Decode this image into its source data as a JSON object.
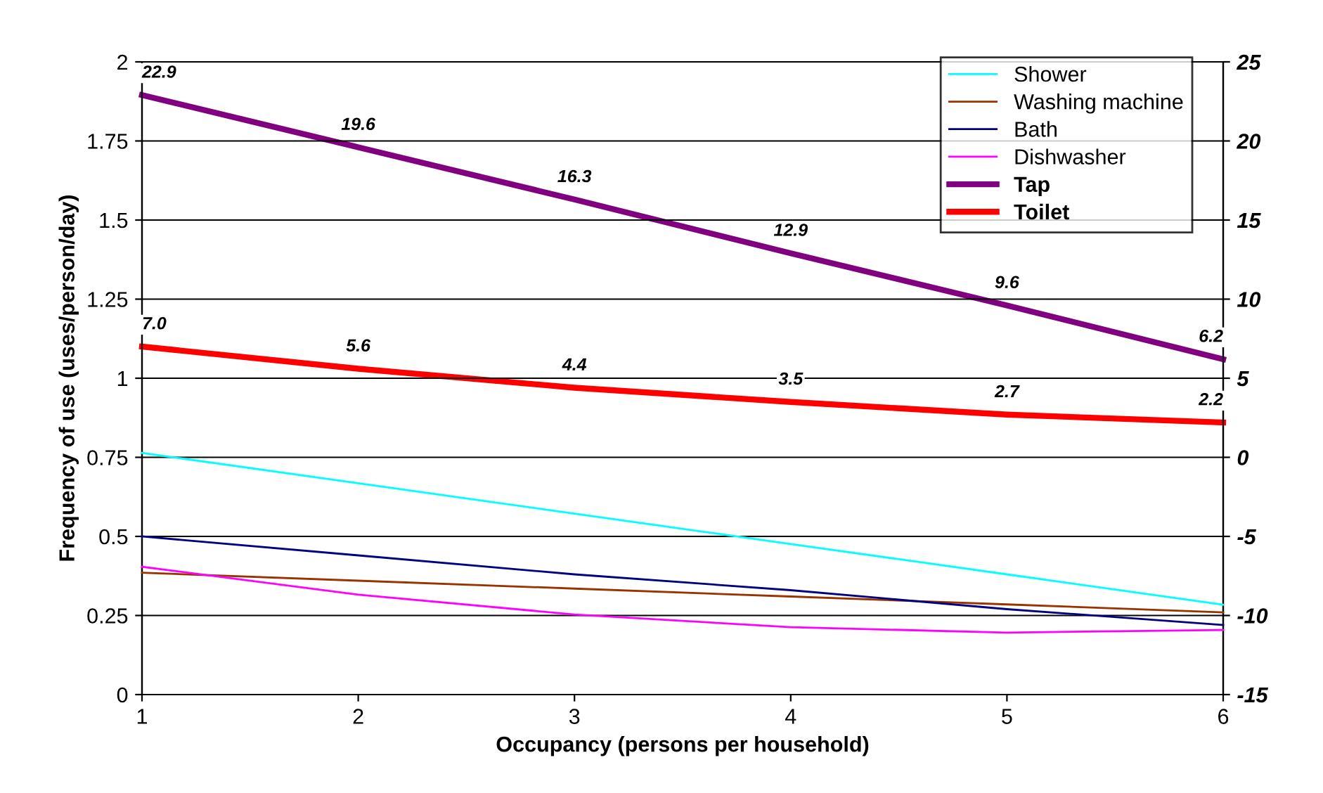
{
  "chart_data": {
    "type": "line",
    "xlabel": "Occupancy (persons per household)",
    "ylabel": "Frequency of use (uses/person/day)",
    "x": [
      1,
      2,
      3,
      4,
      5,
      6
    ],
    "xlim": [
      1,
      6
    ],
    "xticks": [
      1,
      2,
      3,
      4,
      5,
      6
    ],
    "ylim": [
      0,
      2
    ],
    "yticks": [
      0,
      0.25,
      0.5,
      0.75,
      1,
      1.25,
      1.5,
      1.75,
      2
    ],
    "y2lim": [
      -15,
      25
    ],
    "y2ticks": [
      -15,
      -10,
      -5,
      0,
      5,
      10,
      15,
      20,
      25
    ],
    "grid": "y",
    "legend": "top right",
    "marker": "none",
    "line_style": "solid",
    "series": [
      {
        "name": "Shower",
        "color": "#00ffff",
        "values": [
          0.764,
          0.668,
          0.572,
          0.476,
          0.38,
          0.284
        ]
      },
      {
        "name": "Washing machine",
        "color": "#993300",
        "values": [
          0.385,
          0.36,
          0.335,
          0.31,
          0.285,
          0.26
        ]
      },
      {
        "name": "Bath",
        "color": "#000080",
        "values": [
          0.5,
          0.44,
          0.38,
          0.33,
          0.27,
          0.22
        ]
      },
      {
        "name": "Dishwasher",
        "color": "#ff00ff",
        "values": [
          0.404,
          0.316,
          0.253,
          0.213,
          0.196,
          0.204
        ]
      },
      {
        "name": "Tap",
        "color": "#800080",
        "axis": "y2",
        "values": [
          22.9,
          19.6,
          16.3,
          12.9,
          9.6,
          6.2
        ],
        "value_labels": [
          "22.9",
          "19.6",
          "16.3",
          "12.9",
          "9.6",
          "6.2"
        ]
      },
      {
        "name": "Toilet",
        "color": "#ff0000",
        "axis": "y2",
        "values": [
          7.0,
          5.6,
          4.4,
          3.5,
          2.7,
          2.2
        ],
        "value_labels": [
          "7.0",
          "5.6",
          "4.4",
          "3.5",
          "2.7",
          "2.2"
        ]
      }
    ]
  }
}
